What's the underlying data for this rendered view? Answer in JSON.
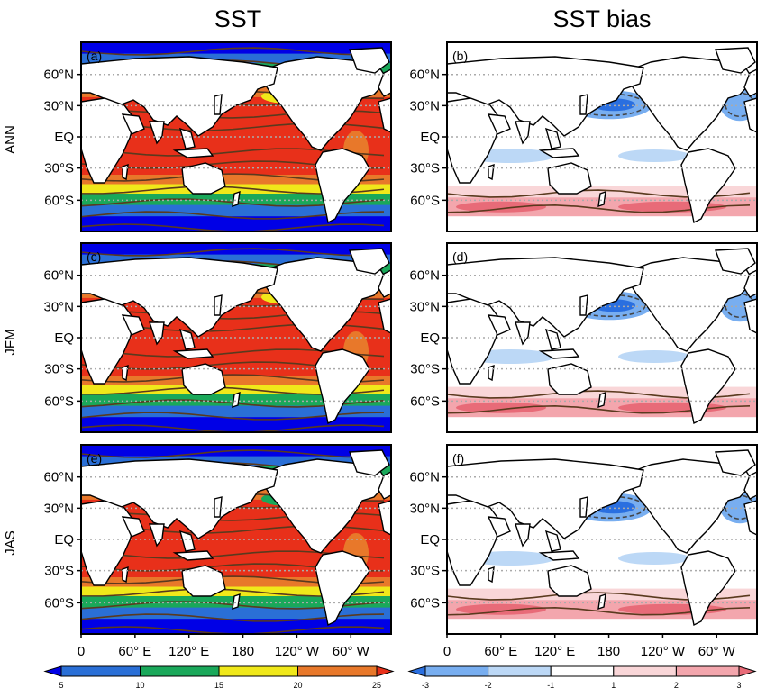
{
  "column_titles": [
    "SST",
    "SST bias"
  ],
  "row_labels": [
    "ANN",
    "JFM",
    "JAS"
  ],
  "panel_labels": [
    "(a)",
    "(b)",
    "(c)",
    "(d)",
    "(e)",
    "(f)"
  ],
  "lat_ticks": [
    "60°N",
    "30°N",
    "EQ",
    "30°S",
    "60°S"
  ],
  "lon_ticks": [
    "0",
    "60° E",
    "120° E",
    "180",
    "120° W",
    "60° W"
  ],
  "colors": {
    "sst_levels": [
      "#0000e6",
      "#2a6fd6",
      "#1aa85a",
      "#f0e81a",
      "#e8782a",
      "#e8301a"
    ],
    "bias_levels": [
      "#2a6fe0",
      "#78aef0",
      "#bcd8f6",
      "#ffffff",
      "#f9d6d8",
      "#f3a6ad",
      "#e86b78"
    ],
    "land": "#ffffff",
    "contour": "#5a3a1e"
  },
  "chart_data": [
    {
      "type": "heatmap",
      "title": "SST",
      "colorbar": {
        "ticks": [
          "5",
          "10",
          "15",
          "20",
          "25"
        ],
        "boundaries": [
          5,
          10,
          15,
          20,
          25
        ],
        "extend": "both"
      },
      "panels": [
        {
          "label": "(a)",
          "row": "ANN"
        },
        {
          "label": "(c)",
          "row": "JFM"
        },
        {
          "label": "(e)",
          "row": "JAS"
        }
      ]
    },
    {
      "type": "heatmap",
      "title": "SST bias",
      "colorbar": {
        "ticks": [
          "-3",
          "-2",
          "-1",
          "1",
          "2",
          "3"
        ],
        "boundaries": [
          -3,
          -2,
          -1,
          1,
          2,
          3
        ],
        "extend": "both"
      },
      "panels": [
        {
          "label": "(b)",
          "row": "ANN"
        },
        {
          "label": "(d)",
          "row": "JFM"
        },
        {
          "label": "(f)",
          "row": "JAS"
        }
      ]
    }
  ]
}
